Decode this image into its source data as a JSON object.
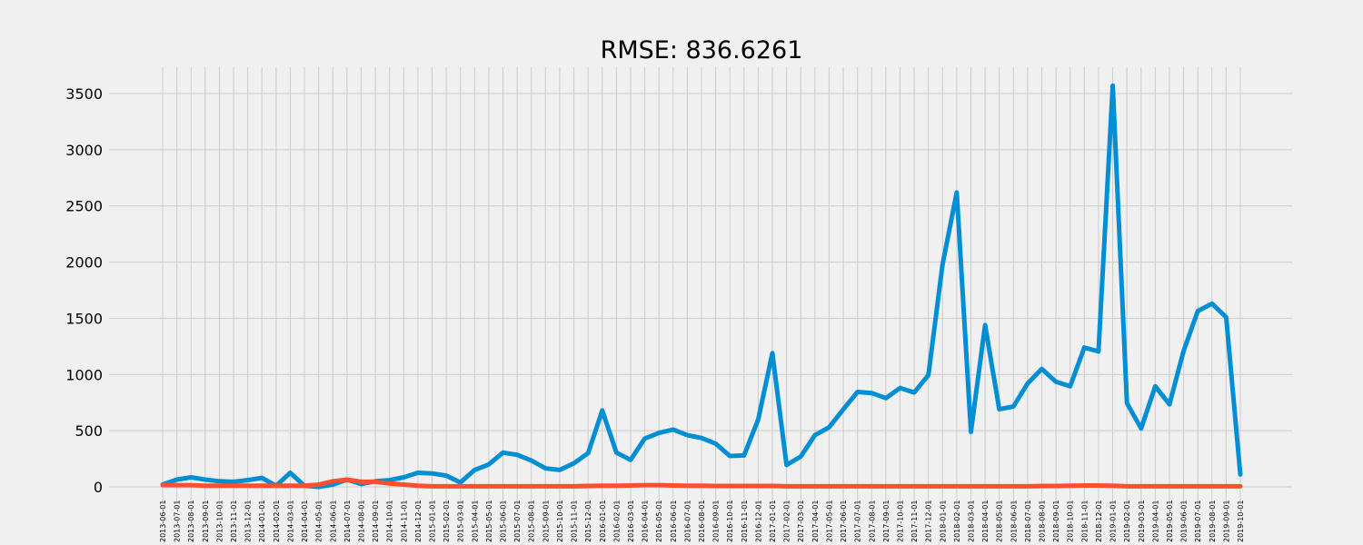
{
  "chart_data": {
    "type": "line",
    "title": "RMSE: 836.6261",
    "xlabel": "",
    "ylabel": "",
    "ylim": [
      -150,
      3740
    ],
    "yticks": [
      0,
      500,
      1000,
      1500,
      2000,
      2500,
      3000,
      3500
    ],
    "grid": true,
    "x": [
      "2013-06-01",
      "2013-07-01",
      "2013-08-01",
      "2013-09-01",
      "2013-10-01",
      "2013-11-01",
      "2013-12-01",
      "2014-01-01",
      "2014-02-01",
      "2014-03-01",
      "2014-04-01",
      "2014-05-01",
      "2014-06-01",
      "2014-07-01",
      "2014-08-01",
      "2014-09-01",
      "2014-10-01",
      "2014-11-01",
      "2014-12-01",
      "2015-01-01",
      "2015-02-01",
      "2015-03-01",
      "2015-04-01",
      "2015-05-01",
      "2015-06-01",
      "2015-07-01",
      "2015-08-01",
      "2015-09-01",
      "2015-10-01",
      "2015-11-01",
      "2015-12-01",
      "2016-01-01",
      "2016-02-01",
      "2016-03-01",
      "2016-04-01",
      "2016-05-01",
      "2016-06-01",
      "2016-07-01",
      "2016-08-01",
      "2016-09-01",
      "2016-10-01",
      "2016-11-01",
      "2016-12-01",
      "2017-01-01",
      "2017-02-01",
      "2017-03-01",
      "2017-04-01",
      "2017-05-01",
      "2017-06-01",
      "2017-07-01",
      "2017-08-01",
      "2017-09-01",
      "2017-10-01",
      "2017-11-01",
      "2017-12-01",
      "2018-01-01",
      "2018-02-01",
      "2018-03-01",
      "2018-04-01",
      "2018-05-01",
      "2018-06-01",
      "2018-07-01",
      "2018-08-01",
      "2018-09-01",
      "2018-10-01",
      "2018-11-01",
      "2018-12-01",
      "2019-01-01",
      "2019-02-01",
      "2019-03-01",
      "2019-04-01",
      "2019-05-01",
      "2019-06-01",
      "2019-07-01",
      "2019-08-01",
      "2019-09-01",
      "2019-10-01"
    ],
    "series": [
      {
        "color": "#008fd5",
        "values": [
          20,
          65,
          85,
          65,
          50,
          45,
          60,
          80,
          10,
          125,
          10,
          0,
          20,
          65,
          25,
          50,
          60,
          85,
          125,
          120,
          100,
          40,
          150,
          200,
          305,
          285,
          235,
          165,
          150,
          210,
          300,
          680,
          305,
          240,
          430,
          480,
          510,
          460,
          435,
          385,
          275,
          280,
          600,
          1190,
          195,
          270,
          460,
          530,
          690,
          845,
          835,
          790,
          880,
          840,
          995,
          1980,
          2620,
          490,
          1440,
          690,
          715,
          920,
          1050,
          935,
          895,
          1240,
          1205,
          3570,
          745,
          520,
          895,
          735,
          1210,
          1565,
          1630,
          1510,
          110
        ]
      },
      {
        "color": "#fc4f30",
        "values": [
          15,
          15,
          15,
          10,
          10,
          10,
          10,
          10,
          10,
          10,
          10,
          20,
          50,
          65,
          45,
          45,
          30,
          20,
          10,
          5,
          5,
          5,
          5,
          5,
          5,
          5,
          5,
          5,
          5,
          5,
          8,
          10,
          10,
          12,
          15,
          15,
          12,
          10,
          10,
          8,
          8,
          8,
          8,
          8,
          5,
          5,
          5,
          5,
          5,
          5,
          5,
          5,
          5,
          5,
          5,
          5,
          5,
          5,
          5,
          5,
          5,
          5,
          8,
          8,
          10,
          12,
          12,
          10,
          5,
          5,
          5,
          5,
          5,
          5,
          5,
          5,
          5
        ]
      }
    ]
  }
}
